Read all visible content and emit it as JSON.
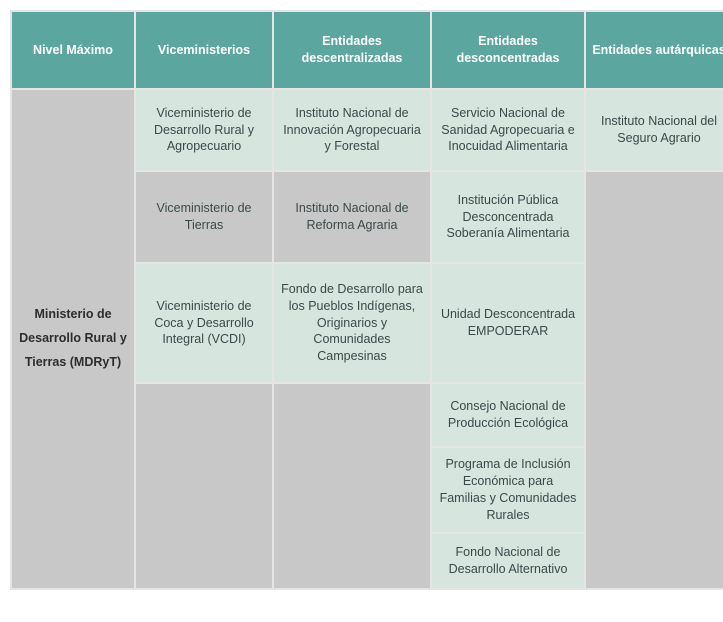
{
  "colors": {
    "header_bg": "#5ba7a0",
    "header_text": "#ffffff",
    "mint_bg": "#d6e5de",
    "gray_bg": "#c8c8c8",
    "text": "#3a4a4a",
    "border": "#e5e5e5"
  },
  "headers": {
    "c1": "Nivel Máximo",
    "c2": "Viceministerios",
    "c3": "Entidades descentralizadas",
    "c4": "Entidades desconcentradas",
    "c5": "Entidades autárquicas"
  },
  "label": "Ministerio de Desarrollo Rural y Tierras (MDRyT)",
  "vice": {
    "r1": "Viceministerio de Desarrollo Rural y Agropecuario",
    "r2": "Viceministerio de Tierras",
    "r3": "Viceministerio de Coca y Desarrollo Integral (VCDI)"
  },
  "descentral": {
    "r1": "Instituto Nacional de Innovación Agropecuaria y Forestal",
    "r2": "Instituto Nacional de Reforma Agraria",
    "r3": "Fondo de Desarrollo para los Pueblos Indígenas, Originarios y Comunidades Campesinas"
  },
  "desconc": {
    "r1": "Servicio Nacional de Sanidad Agropecuaria e Inocuidad Alimentaria",
    "r2": "Institución Pública Desconcentrada Soberanía Alimentaria",
    "r3": "Unidad Desconcentrada EMPODERAR",
    "r4": "Consejo Nacional de Producción Ecológica",
    "r5": "Programa de Inclusión Económica para Familias y Comunidades Rurales",
    "r6": "Fondo Nacional de Desarrollo Alternativo"
  },
  "autarq": {
    "r1": "Instituto Nacional del Seguro Agrario"
  }
}
